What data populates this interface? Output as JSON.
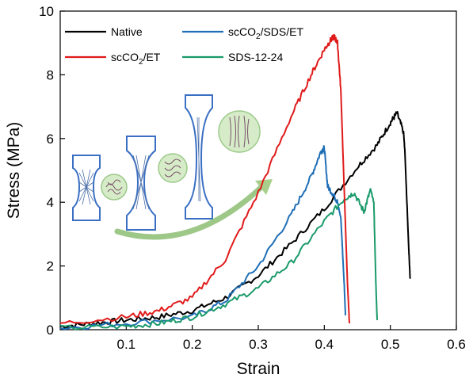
{
  "chart_data": {
    "type": "line",
    "xlabel": "Strain",
    "ylabel": "Stress (MPa)",
    "xlim": [
      0,
      0.6
    ],
    "ylim": [
      0,
      10
    ],
    "xticks": [
      "0.1",
      "0.2",
      "0.3",
      "0.4",
      "0.5",
      "0.6"
    ],
    "yticks": [
      "0",
      "2",
      "4",
      "6",
      "8",
      "10"
    ],
    "grid": false,
    "legend_position": "top-left",
    "series": [
      {
        "name": "Native",
        "color": "#000000",
        "x": [
          0,
          0.05,
          0.1,
          0.15,
          0.2,
          0.25,
          0.3,
          0.35,
          0.4,
          0.45,
          0.48,
          0.5,
          0.51,
          0.52,
          0.522,
          0.528,
          0.53
        ],
        "y": [
          0.1,
          0.2,
          0.3,
          0.4,
          0.6,
          1.0,
          1.7,
          2.7,
          3.8,
          5.1,
          5.8,
          6.5,
          6.8,
          6.2,
          5.6,
          2.5,
          1.6
        ]
      },
      {
        "name": "scCO2/SDS/ET",
        "color": "#1f6fb6",
        "x": [
          0,
          0.1,
          0.2,
          0.25,
          0.3,
          0.35,
          0.38,
          0.395,
          0.4,
          0.405,
          0.415,
          0.42,
          0.425,
          0.43,
          0.432
        ],
        "y": [
          0.05,
          0.2,
          0.4,
          0.9,
          2.0,
          3.6,
          4.8,
          5.6,
          5.7,
          4.5,
          4.2,
          4.0,
          3.5,
          1.5,
          0.45
        ]
      },
      {
        "name": "scCO2/ET",
        "color": "#e01b1b",
        "x": [
          0,
          0.1,
          0.15,
          0.2,
          0.25,
          0.3,
          0.35,
          0.38,
          0.4,
          0.41,
          0.415,
          0.42,
          0.425,
          0.43,
          0.435,
          0.438
        ],
        "y": [
          0.2,
          0.4,
          0.6,
          1.0,
          2.2,
          4.3,
          6.7,
          8.0,
          8.8,
          9.1,
          9.2,
          9.0,
          7.5,
          4.5,
          1.5,
          0.2
        ]
      },
      {
        "name": "SDS-12-24",
        "color": "#1a9a6a",
        "x": [
          0,
          0.1,
          0.15,
          0.2,
          0.25,
          0.3,
          0.35,
          0.4,
          0.43,
          0.445,
          0.46,
          0.47,
          0.475,
          0.478,
          0.48
        ],
        "y": [
          0.05,
          0.1,
          0.2,
          0.4,
          0.8,
          1.3,
          2.1,
          3.4,
          4.1,
          4.3,
          3.7,
          4.4,
          4.0,
          1.5,
          0.3
        ]
      }
    ],
    "legend_labels": [
      {
        "series": "Native",
        "text": "Native",
        "sub": "",
        "rest": ""
      },
      {
        "series": "scCO2/SDS/ET",
        "text": "scCO",
        "sub": "2",
        "rest": "/SDS/ET"
      },
      {
        "series": "scCO2/ET",
        "text": "scCO",
        "sub": "2",
        "rest": "/ET"
      },
      {
        "series": "SDS-12-24",
        "text": "SDS-12-24",
        "sub": "",
        "rest": ""
      }
    ],
    "inset": {
      "description_icon": "dogbone-specimen-stretching-illustration",
      "outline_color": "#3b6fc4",
      "circle_fill": "#d6ecc8",
      "circle_stroke": "#9cc98a",
      "arrow_color": "#7db55f"
    }
  }
}
